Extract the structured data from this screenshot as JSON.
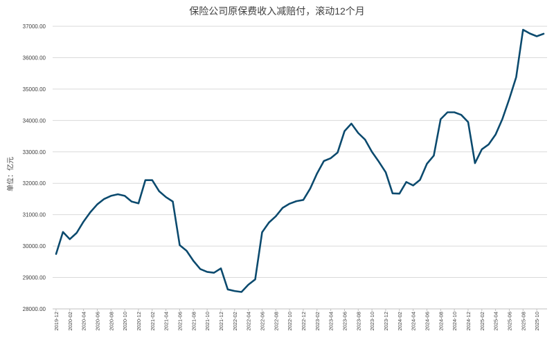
{
  "chart_data": {
    "type": "line",
    "title": "保险公司原保费收入减赔付，滚动12个月",
    "ylabel": "单位：亿元",
    "xlabel": "",
    "ylim": [
      28000,
      37000
    ],
    "yticks": [
      "28000.00",
      "29000.00",
      "30000.00",
      "31000.00",
      "32000.00",
      "33000.00",
      "34000.00",
      "35000.00",
      "36000.00",
      "37000.00"
    ],
    "ytick_values": [
      28000,
      29000,
      30000,
      31000,
      32000,
      33000,
      34000,
      35000,
      36000,
      37000
    ],
    "x": [
      "2019-12",
      "2020-01",
      "2020-02",
      "2020-03",
      "2020-04",
      "2020-05",
      "2020-06",
      "2020-07",
      "2020-08",
      "2020-09",
      "2020-10",
      "2020-11",
      "2020-12",
      "2021-01",
      "2021-02",
      "2021-03",
      "2021-04",
      "2021-05",
      "2021-06",
      "2021-07",
      "2021-08",
      "2021-09",
      "2021-10",
      "2021-11",
      "2021-12",
      "2022-01",
      "2022-02",
      "2022-03",
      "2022-04",
      "2022-05",
      "2022-06",
      "2022-07",
      "2022-08",
      "2022-09",
      "2022-10",
      "2022-11",
      "2022-12",
      "2023-01",
      "2023-02",
      "2023-03",
      "2023-04",
      "2023-05",
      "2023-06",
      "2023-07",
      "2023-08",
      "2023-09",
      "2023-10",
      "2023-11",
      "2023-12",
      "2024-01",
      "2024-02",
      "2024-03",
      "2024-04",
      "2024-05",
      "2024-06",
      "2024-07",
      "2024-08",
      "2024-09",
      "2024-10",
      "2024-11",
      "2024-12",
      "2025-01",
      "2025-02",
      "2025-03",
      "2025-04",
      "2025-05",
      "2025-06",
      "2025-07",
      "2025-08",
      "2025-09",
      "2025-10",
      "2025-11"
    ],
    "xtick_labels": [
      "2019-12",
      "2020-02",
      "2020-04",
      "2020-06",
      "2020-08",
      "2020-10",
      "2020-12",
      "2021-02",
      "2021-04",
      "2021-06",
      "2021-08",
      "2021-10",
      "2021-12",
      "2022-02",
      "2022-04",
      "2022-06",
      "2022-08",
      "2022-10",
      "2022-12",
      "2023-02",
      "2023-04",
      "2023-06",
      "2023-08",
      "2023-10",
      "2023-12",
      "2024-02",
      "2024-04",
      "2024-06",
      "2024-08",
      "2024-10",
      "2024-12",
      "2025-02",
      "2025-04",
      "2025-06",
      "2025-08",
      "2025-10"
    ],
    "series": [
      {
        "color": "#0b4a6e",
        "values": [
          29750,
          30450,
          30220,
          30420,
          30780,
          31080,
          31330,
          31500,
          31600,
          31650,
          31600,
          31420,
          31360,
          32100,
          32100,
          31750,
          31560,
          31420,
          30030,
          29850,
          29530,
          29270,
          29180,
          29150,
          29290,
          28620,
          28570,
          28540,
          28770,
          28940,
          30440,
          30750,
          30950,
          31220,
          31350,
          31430,
          31470,
          31830,
          32310,
          32710,
          32800,
          32980,
          33660,
          33900,
          33600,
          33390,
          33000,
          32690,
          32350,
          31680,
          31670,
          32040,
          31930,
          32110,
          32620,
          32880,
          34040,
          34260,
          34260,
          34180,
          33950,
          32640,
          33080,
          33240,
          33550,
          34050,
          34690,
          35380,
          36890,
          36770,
          36680,
          36760
        ]
      }
    ],
    "grid": true,
    "legend": "none"
  }
}
